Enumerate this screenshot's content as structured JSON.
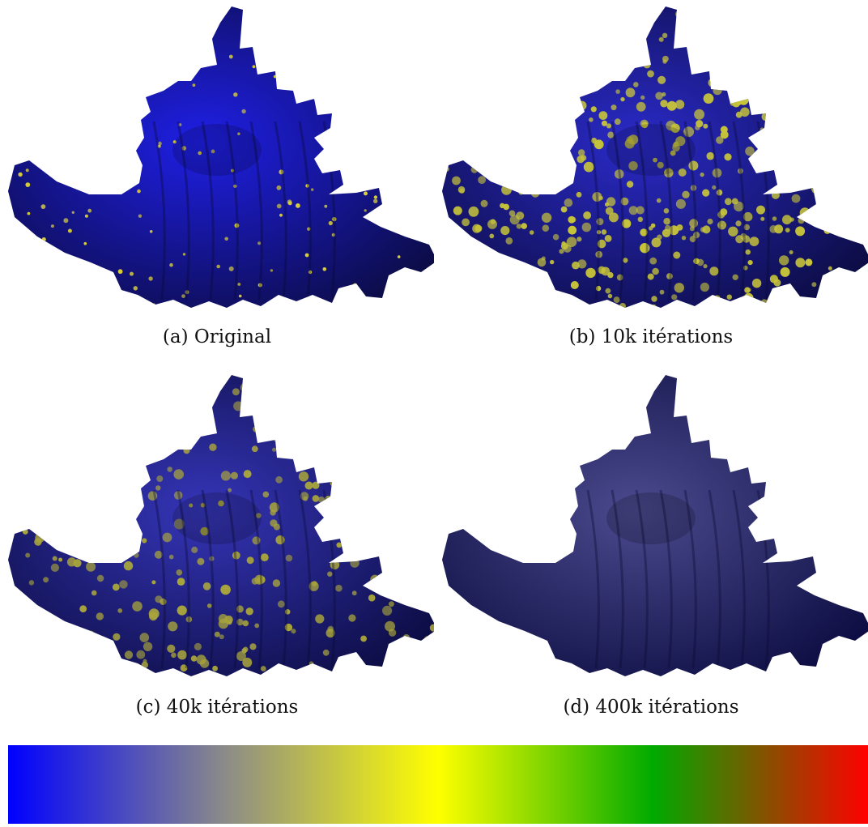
{
  "figure": {
    "panels": [
      {
        "id": "a",
        "caption": "(a) Original",
        "fill": "#1f1fe6",
        "spot_color": "#d9cf3a",
        "spot_density": 0.18
      },
      {
        "id": "b",
        "caption": "(b) 10k itérations",
        "fill": "#2a2ac8",
        "spot_color": "#c7c43a",
        "spot_density": 0.55
      },
      {
        "id": "c",
        "caption": "(c) 40k itérations",
        "fill": "#3535b8",
        "spot_color": "#a8a43c",
        "spot_density": 0.35
      },
      {
        "id": "d",
        "caption": "(d) 400k itérations",
        "fill": "#4a4a8e",
        "spot_color": "#5c5c94",
        "spot_density": 0.0
      }
    ],
    "colorbar": {
      "stops": [
        "#0000ff",
        "#8a8a8a",
        "#ffff00",
        "#00aa00",
        "#ff0000"
      ]
    }
  }
}
